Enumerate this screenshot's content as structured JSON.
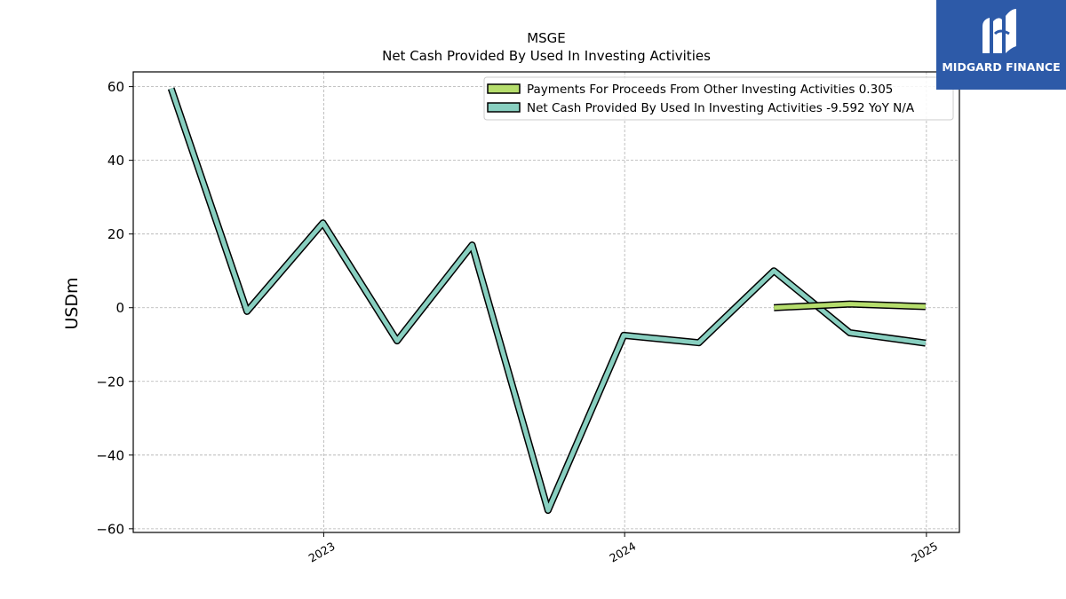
{
  "chart_data": {
    "type": "line",
    "title": "MSGE",
    "subtitle": "Net Cash Provided By Used In Investing Activities",
    "ylabel": "USDm",
    "xlabel": "",
    "ylim": [
      -61,
      64
    ],
    "xlim": [
      "2022-05-15",
      "2025-02-10"
    ],
    "yticks": [
      60,
      40,
      20,
      0,
      -20,
      -40,
      -60
    ],
    "ytick_labels": [
      "60",
      "40",
      "20",
      "0",
      "−20",
      "−40",
      "−60"
    ],
    "xticks": [
      {
        "date": "2023-01-01",
        "label": "2023"
      },
      {
        "date": "2024-01-01",
        "label": "2024"
      },
      {
        "date": "2025-01-01",
        "label": "2025"
      }
    ],
    "grid": true,
    "legend_position": "top-right",
    "series": [
      {
        "name": "Payments For Proceeds From Other Investing Activities",
        "legend_label": "Payments For Proceeds From Other Investing Activities  0.305",
        "color": "#b5dd6c",
        "points": [
          {
            "x": "2024-06-30",
            "y": 0.0
          },
          {
            "x": "2024-09-30",
            "y": 1.0
          },
          {
            "x": "2024-12-31",
            "y": 0.305
          }
        ]
      },
      {
        "name": "Net Cash Provided By Used In Investing Activities",
        "legend_label": "Net Cash Provided By Used In Investing Activities  -9.592 YoY N/A",
        "color": "#88cfc0",
        "points": [
          {
            "x": "2022-06-30",
            "y": 59.5
          },
          {
            "x": "2022-09-30",
            "y": -1.0
          },
          {
            "x": "2022-12-31",
            "y": 23.0
          },
          {
            "x": "2023-03-31",
            "y": -9.0
          },
          {
            "x": "2023-06-30",
            "y": 17.0
          },
          {
            "x": "2023-09-30",
            "y": -55.0
          },
          {
            "x": "2023-12-31",
            "y": -7.5
          },
          {
            "x": "2024-03-31",
            "y": -9.5
          },
          {
            "x": "2024-06-30",
            "y": 10.0
          },
          {
            "x": "2024-09-30",
            "y": -6.8
          },
          {
            "x": "2024-12-31",
            "y": -9.592
          }
        ]
      }
    ]
  },
  "logo": {
    "text": "MIDGARD FINANCE",
    "background": "#2d5aa8"
  }
}
